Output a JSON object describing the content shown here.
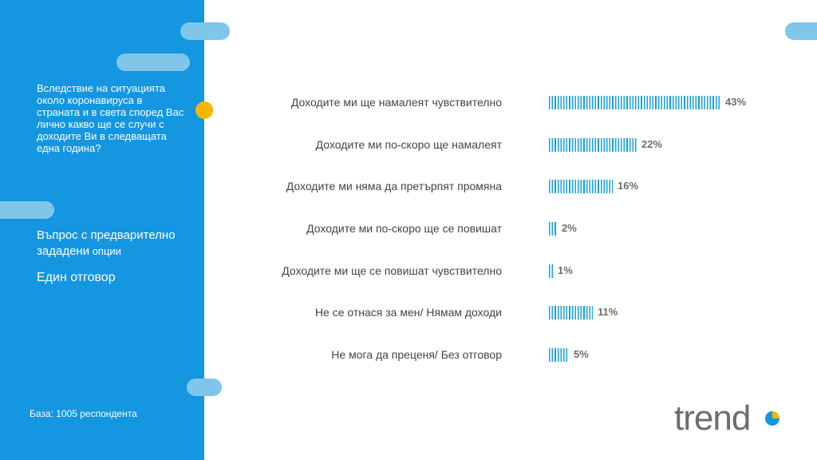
{
  "sidebar": {
    "question": "Вследствие на ситуацията около коронавируса в страната и в света според Вас лично какво ще се случи с доходите Ви в следващата една година?",
    "question_type_line1": "Въпрос с предварително",
    "question_type_line2a": "зададени",
    "question_type_line2b": " опции",
    "answer_type": "Един отговор",
    "base": "База: 1005 респондента"
  },
  "logo": {
    "text": "trend"
  },
  "colors": {
    "sidebar": "#1496e0",
    "bars": "#1aa0d8",
    "accent_dot": "#f7b500",
    "pills": "#7fc6ea"
  },
  "chart_data": {
    "type": "bar",
    "orientation": "horizontal",
    "categories": [
      "Доходите ми ще намалеят чувствително",
      "Доходите ми по-скоро ще намалеят",
      "Доходите ми няма да претърпят промяна",
      "Доходите ми по-скоро ще се повишат",
      "Доходите ми ще се повишат чувствително",
      "Не се отнася за мен/ Нямам доходи",
      "Не мога да преценя/ Без отговор"
    ],
    "values": [
      43,
      22,
      16,
      2,
      1,
      11,
      5
    ],
    "value_labels": [
      "43%",
      "22%",
      "16%",
      "2%",
      "1%",
      "11%",
      "5%"
    ],
    "unit": "%"
  }
}
